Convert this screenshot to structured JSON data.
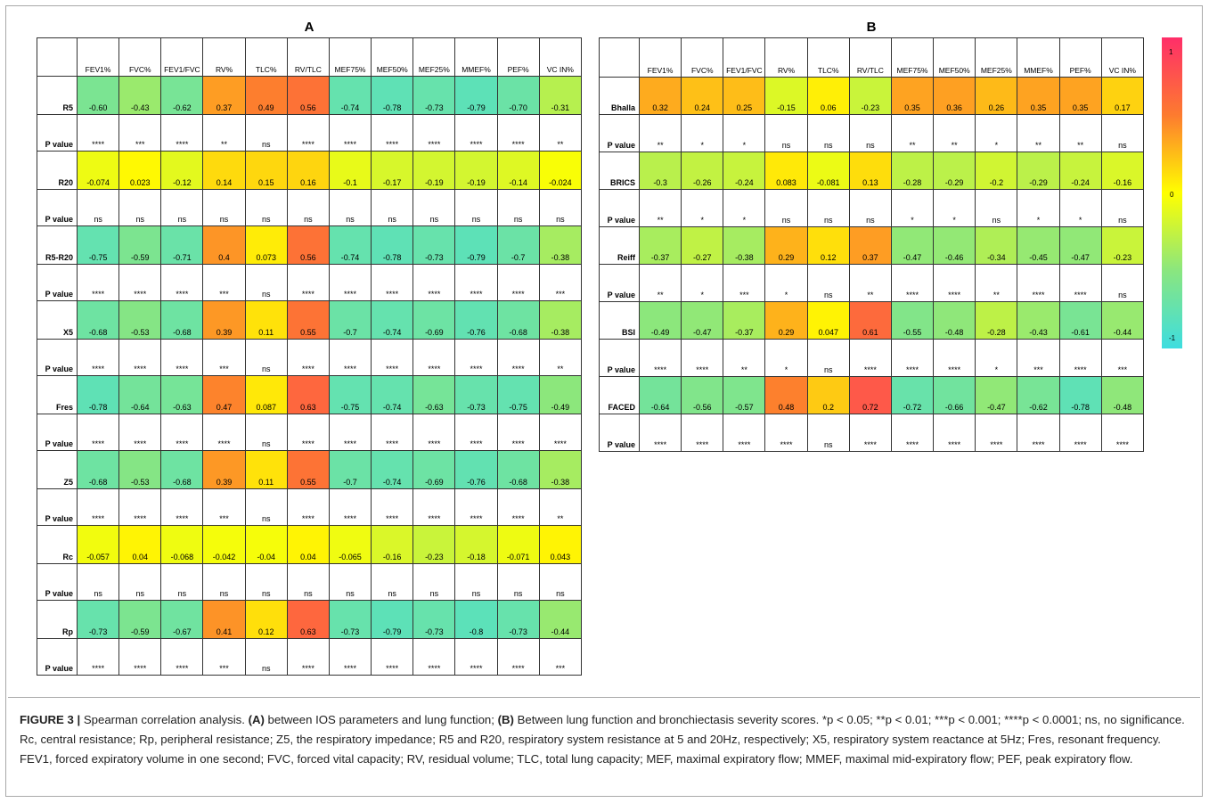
{
  "panel_a": {
    "title": "A",
    "columns": [
      "FEV1%",
      "FVC%",
      "FEV1/FVC",
      "RV%",
      "TLC%",
      "RV/TLC",
      "MEF75%",
      "MEF50%",
      "MEF25%",
      "MMEF%",
      "PEF%",
      "VC IN%"
    ],
    "rows": [
      {
        "label": "R5",
        "values": [
          -0.6,
          -0.43,
          -0.62,
          0.37,
          0.49,
          0.56,
          -0.74,
          -0.78,
          -0.73,
          -0.79,
          -0.7,
          -0.31
        ],
        "value_text": [
          "-0.60",
          "-0.43",
          "-0.62",
          "0.37",
          "0.49",
          "0.56",
          "-0.74",
          "-0.78",
          "-0.73",
          "-0.79",
          "-0.70",
          "-0.31"
        ],
        "p_label": "P value",
        "p": [
          "****",
          "***",
          "****",
          "**",
          "ns",
          "****",
          "****",
          "****",
          "****",
          "****",
          "****",
          "**"
        ]
      },
      {
        "label": "R20",
        "values": [
          -0.074,
          0.023,
          -0.12,
          0.14,
          0.15,
          0.16,
          -0.1,
          -0.17,
          -0.19,
          -0.19,
          -0.14,
          -0.024
        ],
        "value_text": [
          "-0.074",
          "0.023",
          "-0.12",
          "0.14",
          "0.15",
          "0.16",
          "-0.1",
          "-0.17",
          "-0.19",
          "-0.19",
          "-0.14",
          "-0.024"
        ],
        "p_label": "P value",
        "p": [
          "ns",
          "ns",
          "ns",
          "ns",
          "ns",
          "ns",
          "ns",
          "ns",
          "ns",
          "ns",
          "ns",
          "ns"
        ]
      },
      {
        "label": "R5-R20",
        "values": [
          -0.75,
          -0.59,
          -0.71,
          0.4,
          0.073,
          0.56,
          -0.74,
          -0.78,
          -0.73,
          -0.79,
          -0.7,
          -0.38
        ],
        "value_text": [
          "-0.75",
          "-0.59",
          "-0.71",
          "0.4",
          "0.073",
          "0.56",
          "-0.74",
          "-0.78",
          "-0.73",
          "-0.79",
          "-0.7",
          "-0.38"
        ],
        "p_label": "P value",
        "p": [
          "****",
          "****",
          "****",
          "***",
          "ns",
          "****",
          "****",
          "****",
          "****",
          "****",
          "****",
          "***"
        ]
      },
      {
        "label": "X5",
        "values": [
          -0.68,
          -0.53,
          -0.68,
          0.39,
          0.11,
          0.55,
          -0.7,
          -0.74,
          -0.69,
          -0.76,
          -0.68,
          -0.38
        ],
        "value_text": [
          "-0.68",
          "-0.53",
          "-0.68",
          "0.39",
          "0.11",
          "0.55",
          "-0.7",
          "-0.74",
          "-0.69",
          "-0.76",
          "-0.68",
          "-0.38"
        ],
        "p_label": "P value",
        "p": [
          "****",
          "****",
          "****",
          "***",
          "ns",
          "****",
          "****",
          "****",
          "****",
          "****",
          "****",
          "**"
        ]
      },
      {
        "label": "Fres",
        "values": [
          -0.78,
          -0.64,
          -0.63,
          0.47,
          0.087,
          0.63,
          -0.75,
          -0.74,
          -0.63,
          -0.73,
          -0.75,
          -0.49
        ],
        "value_text": [
          "-0.78",
          "-0.64",
          "-0.63",
          "0.47",
          "0.087",
          "0.63",
          "-0.75",
          "-0.74",
          "-0.63",
          "-0.73",
          "-0.75",
          "-0.49"
        ],
        "p_label": "P value",
        "p": [
          "****",
          "****",
          "****",
          "****",
          "ns",
          "****",
          "****",
          "****",
          "****",
          "****",
          "****",
          "****"
        ]
      },
      {
        "label": "Z5",
        "values": [
          -0.68,
          -0.53,
          -0.68,
          0.39,
          0.11,
          0.55,
          -0.7,
          -0.74,
          -0.69,
          -0.76,
          -0.68,
          -0.38
        ],
        "value_text": [
          "-0.68",
          "-0.53",
          "-0.68",
          "0.39",
          "0.11",
          "0.55",
          "-0.7",
          "-0.74",
          "-0.69",
          "-0.76",
          "-0.68",
          "-0.38"
        ],
        "p_label": "P value",
        "p": [
          "****",
          "****",
          "****",
          "***",
          "ns",
          "****",
          "****",
          "****",
          "****",
          "****",
          "****",
          "**"
        ]
      },
      {
        "label": "Rc",
        "values": [
          -0.057,
          0.04,
          -0.068,
          -0.042,
          -0.04,
          0.04,
          -0.065,
          -0.16,
          -0.23,
          -0.18,
          -0.071,
          0.043
        ],
        "value_text": [
          "-0.057",
          "0.04",
          "-0.068",
          "-0.042",
          "-0.04",
          "0.04",
          "-0.065",
          "-0.16",
          "-0.23",
          "-0.18",
          "-0.071",
          "0.043"
        ],
        "p_label": "P value",
        "p": [
          "ns",
          "ns",
          "ns",
          "ns",
          "ns",
          "ns",
          "ns",
          "ns",
          "ns",
          "ns",
          "ns",
          "ns"
        ]
      },
      {
        "label": "Rp",
        "values": [
          -0.73,
          -0.59,
          -0.67,
          0.41,
          0.12,
          0.63,
          -0.73,
          -0.79,
          -0.73,
          -0.8,
          -0.73,
          -0.44
        ],
        "value_text": [
          "-0.73",
          "-0.59",
          "-0.67",
          "0.41",
          "0.12",
          "0.63",
          "-0.73",
          "-0.79",
          "-0.73",
          "-0.8",
          "-0.73",
          "-0.44"
        ],
        "p_label": "P value",
        "p": [
          "****",
          "****",
          "****",
          "***",
          "ns",
          "****",
          "****",
          "****",
          "****",
          "****",
          "****",
          "***"
        ]
      }
    ]
  },
  "panel_b": {
    "title": "B",
    "columns": [
      "FEV1%",
      "FVC%",
      "FEV1/FVC",
      "RV%",
      "TLC%",
      "RV/TLC",
      "MEF75%",
      "MEF50%",
      "MEF25%",
      "MMEF%",
      "PEF%",
      "VC IN%"
    ],
    "rows": [
      {
        "label": "Bhalla",
        "values": [
          0.32,
          0.24,
          0.25,
          -0.15,
          0.06,
          -0.23,
          0.35,
          0.36,
          0.26,
          0.35,
          0.35,
          0.17
        ],
        "value_text": [
          "0.32",
          "0.24",
          "0.25",
          "-0.15",
          "0.06",
          "-0.23",
          "0.35",
          "0.36",
          "0.26",
          "0.35",
          "0.35",
          "0.17"
        ],
        "p_label": "P value",
        "p": [
          "**",
          "*",
          "*",
          "ns",
          "ns",
          "ns",
          "**",
          "**",
          "*",
          "**",
          "**",
          "ns"
        ]
      },
      {
        "label": "BRICS",
        "values": [
          -0.3,
          -0.26,
          -0.24,
          0.083,
          -0.081,
          0.13,
          -0.28,
          -0.29,
          -0.2,
          -0.29,
          -0.24,
          -0.16
        ],
        "value_text": [
          "-0.3",
          "-0.26",
          "-0.24",
          "0.083",
          "-0.081",
          "0.13",
          "-0.28",
          "-0.29",
          "-0.2",
          "-0.29",
          "-0.24",
          "-0.16"
        ],
        "p_label": "P value",
        "p": [
          "**",
          "*",
          "*",
          "ns",
          "ns",
          "ns",
          "*",
          "*",
          "ns",
          "*",
          "*",
          "ns"
        ]
      },
      {
        "label": "Reiff",
        "values": [
          -0.37,
          -0.27,
          -0.38,
          0.29,
          0.12,
          0.37,
          -0.47,
          -0.46,
          -0.34,
          -0.45,
          -0.47,
          -0.23
        ],
        "value_text": [
          "-0.37",
          "-0.27",
          "-0.38",
          "0.29",
          "0.12",
          "0.37",
          "-0.47",
          "-0.46",
          "-0.34",
          "-0.45",
          "-0.47",
          "-0.23"
        ],
        "p_label": "P value",
        "p": [
          "**",
          "*",
          "***",
          "*",
          "ns",
          "**",
          "****",
          "****",
          "**",
          "****",
          "****",
          "ns"
        ]
      },
      {
        "label": "BSI",
        "values": [
          -0.49,
          -0.47,
          -0.37,
          0.29,
          0.047,
          0.61,
          -0.55,
          -0.48,
          -0.28,
          -0.43,
          -0.61,
          -0.44
        ],
        "value_text": [
          "-0.49",
          "-0.47",
          "-0.37",
          "0.29",
          "0.047",
          "0.61",
          "-0.55",
          "-0.48",
          "-0.28",
          "-0.43",
          "-0.61",
          "-0.44"
        ],
        "p_label": "P value",
        "p": [
          "****",
          "****",
          "**",
          "*",
          "ns",
          "****",
          "****",
          "****",
          "*",
          "***",
          "****",
          "***"
        ]
      },
      {
        "label": "FACED",
        "values": [
          -0.64,
          -0.56,
          -0.57,
          0.48,
          0.2,
          0.72,
          -0.72,
          -0.66,
          -0.47,
          -0.62,
          -0.78,
          -0.48
        ],
        "value_text": [
          "-0.64",
          "-0.56",
          "-0.57",
          "0.48",
          "0.2",
          "0.72",
          "-0.72",
          "-0.66",
          "-0.47",
          "-0.62",
          "-0.78",
          "-0.48"
        ],
        "p_label": "P value",
        "p": [
          "****",
          "****",
          "****",
          "****",
          "ns",
          "****",
          "****",
          "****",
          "****",
          "****",
          "****",
          "****"
        ]
      }
    ]
  },
  "colorbar": {
    "ticks": [
      "1",
      "0",
      "-1"
    ],
    "colors": [
      "#ff2e69",
      "#fd7b2f",
      "#ffff00",
      "#8ae67f",
      "#3ddde0"
    ]
  },
  "chart_data": [
    {
      "type": "heatmap",
      "title": "A",
      "x": [
        "FEV1%",
        "FVC%",
        "FEV1/FVC",
        "RV%",
        "TLC%",
        "RV/TLC",
        "MEF75%",
        "MEF50%",
        "MEF25%",
        "MMEF%",
        "PEF%",
        "VC IN%"
      ],
      "y": [
        "R5",
        "R20",
        "R5-R20",
        "X5",
        "Fres",
        "Z5",
        "Rc",
        "Rp"
      ],
      "range": [
        -1,
        1
      ]
    },
    {
      "type": "heatmap",
      "title": "B",
      "x": [
        "FEV1%",
        "FVC%",
        "FEV1/FVC",
        "RV%",
        "TLC%",
        "RV/TLC",
        "MEF75%",
        "MEF50%",
        "MEF25%",
        "MMEF%",
        "PEF%",
        "VC IN%"
      ],
      "y": [
        "Bhalla",
        "BRICS",
        "Reiff",
        "BSI",
        "FACED"
      ],
      "range": [
        -1,
        1
      ]
    }
  ],
  "caption": {
    "label": "FIGURE 3 |",
    "text_1": " Spearman correlation analysis. ",
    "a_label": "(A)",
    "text_2": " between IOS parameters and lung function; ",
    "b_label": "(B)",
    "text_3": " Between lung function and bronchiectasis severity scores. *p < 0.05; **p < 0.01; ***p < 0.001; ****p < 0.0001; ns, no significance. Rc, central resistance; Rp, peripheral resistance; Z5, the respiratory impedance; R5 and R20, respiratory system resistance at 5 and 20Hz, respectively; X5, respiratory system reactance at 5Hz; Fres, resonant frequency. FEV1, forced expiratory volume in one second; FVC, forced vital capacity; RV, residual volume; TLC, total lung capacity; MEF, maximal expiratory flow; MMEF, maximal mid-expiratory flow; PEF, peak expiratory flow."
  }
}
